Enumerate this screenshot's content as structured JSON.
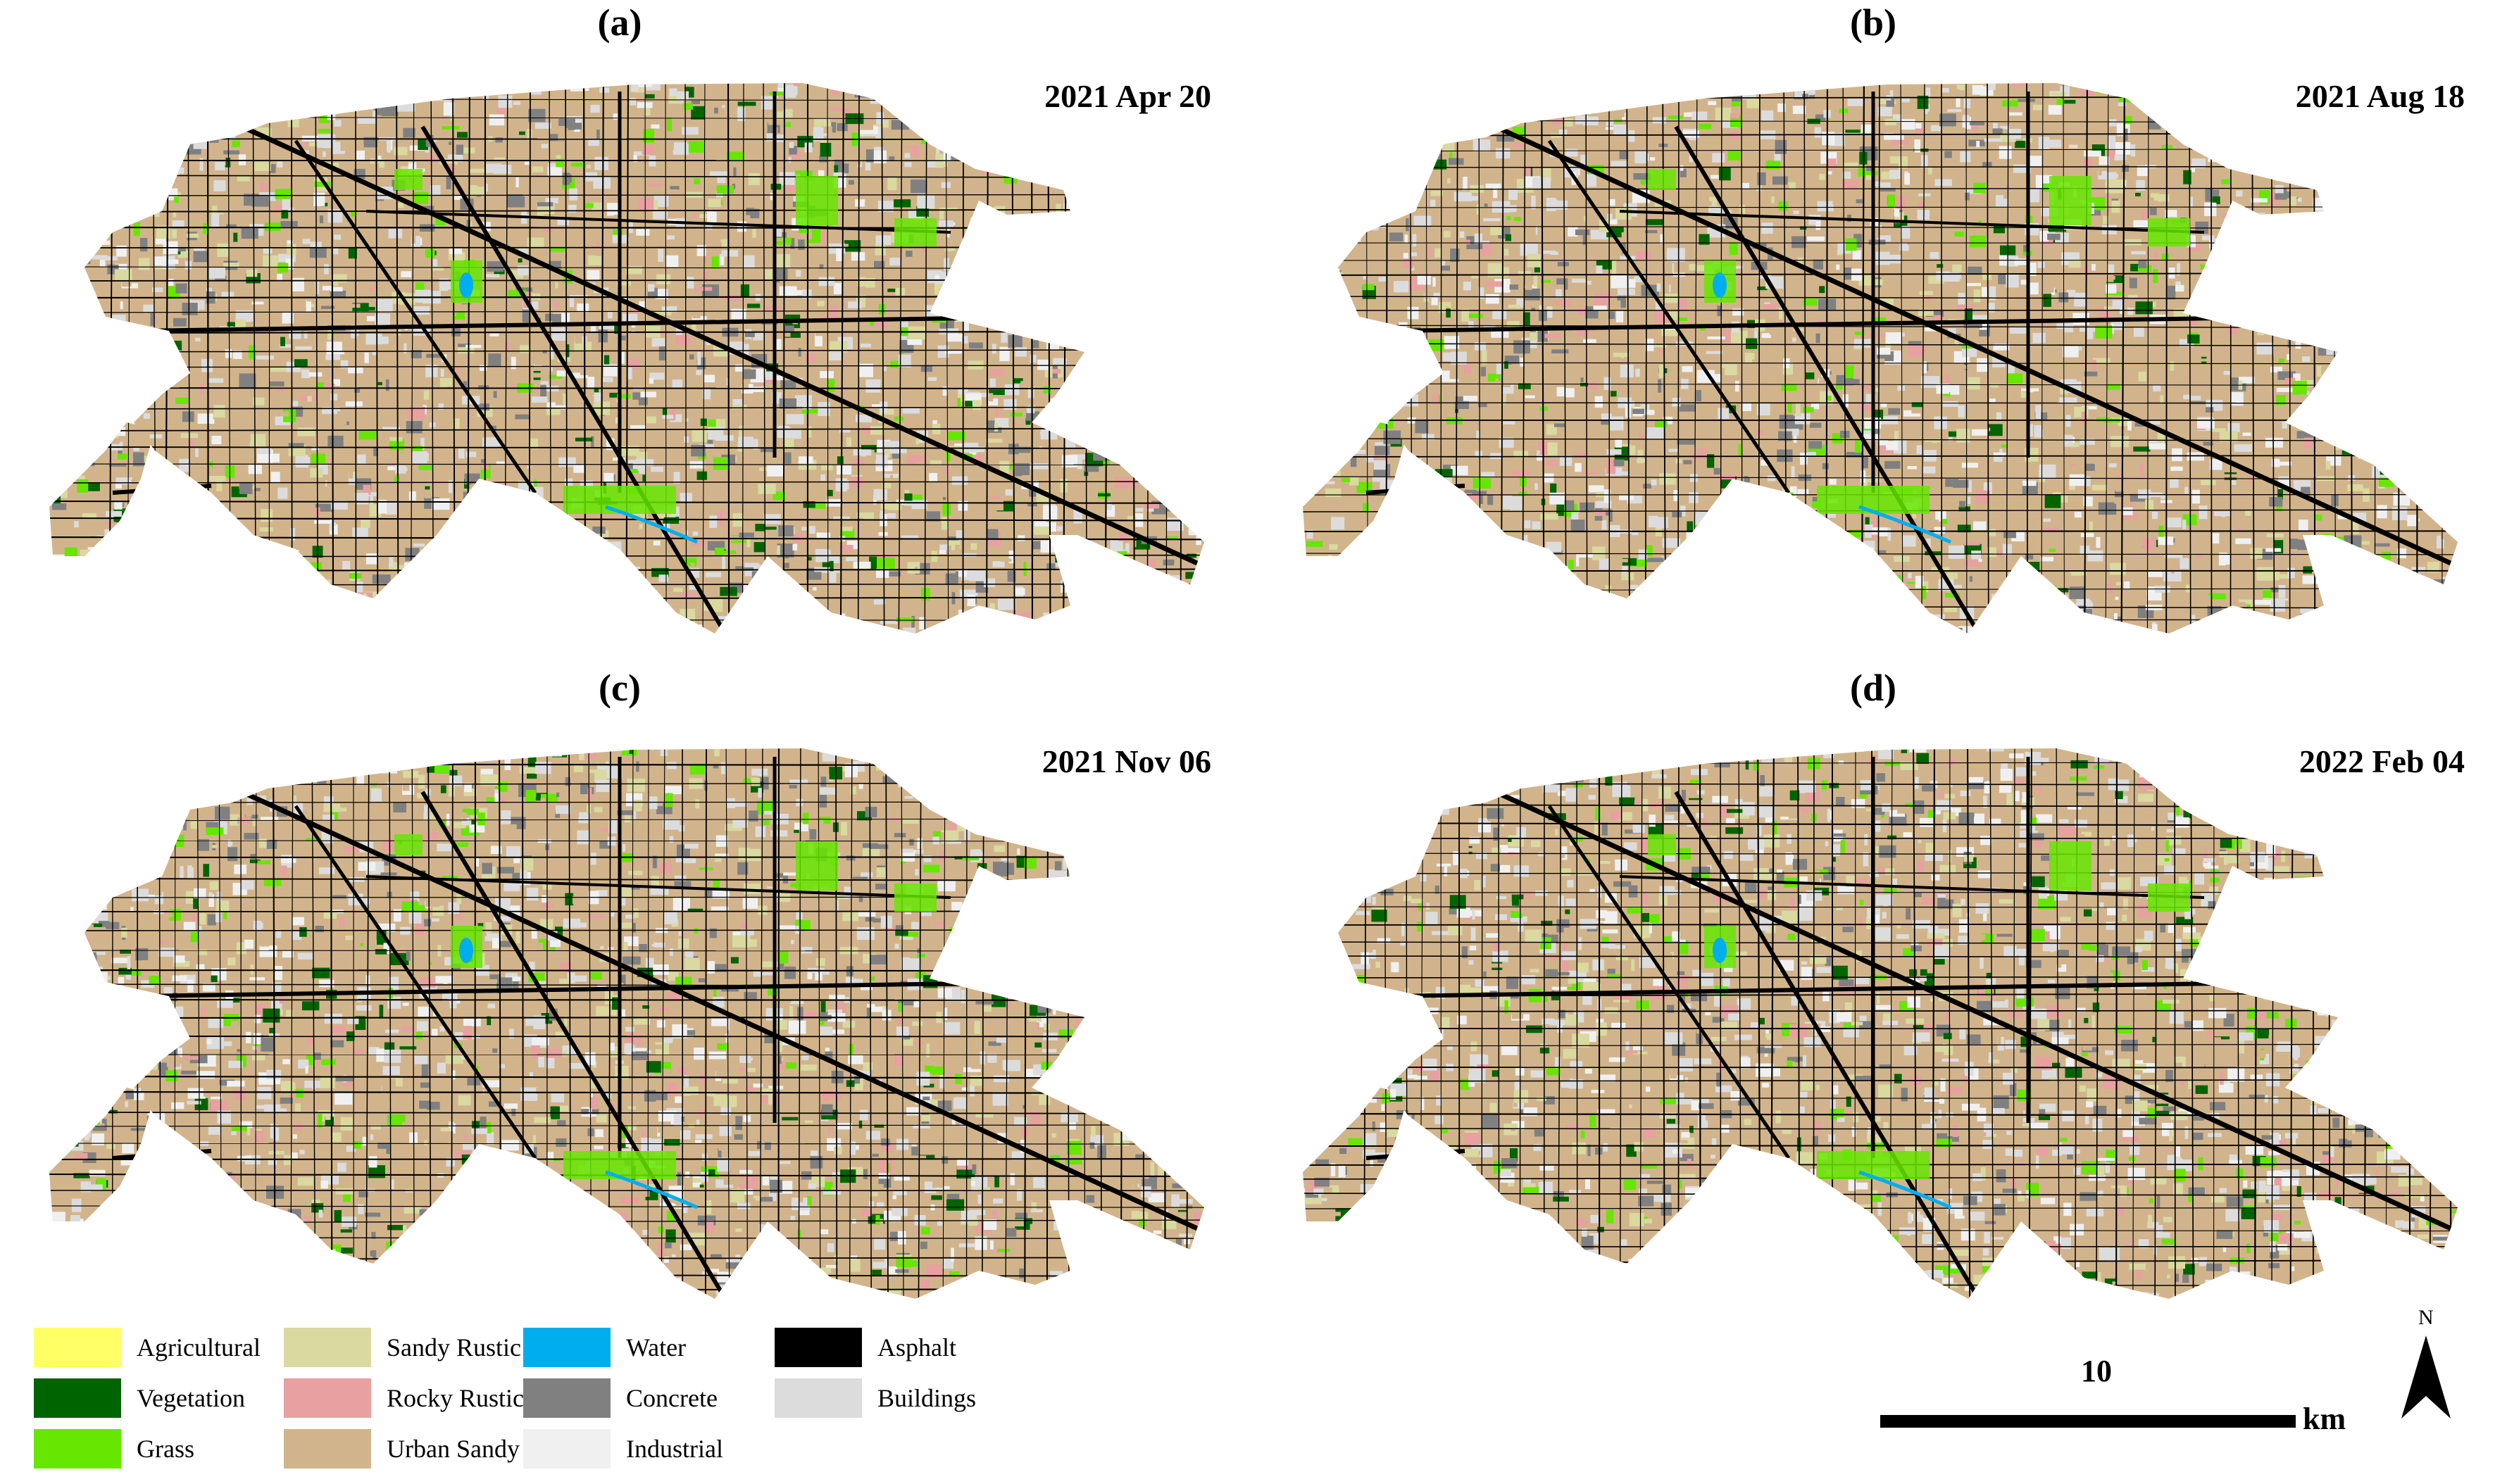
{
  "panels": [
    {
      "letter": "(a)",
      "date": "2021 Apr 20"
    },
    {
      "letter": "(b)",
      "date": "2021 Aug 18"
    },
    {
      "letter": "(c)",
      "date": "2021 Nov 06"
    },
    {
      "letter": "(d)",
      "date": "2022 Feb 04"
    }
  ],
  "legend": {
    "items": [
      {
        "label": "Agricultural",
        "color": "#ffff66"
      },
      {
        "label": "Vegetation",
        "color": "#006400"
      },
      {
        "label": "Grass",
        "color": "#66e600"
      },
      {
        "label": "Sandy Rustic",
        "color": "#d9d9a0"
      },
      {
        "label": "Rocky Rustic",
        "color": "#e8a0a0"
      },
      {
        "label": "Urban Sandy",
        "color": "#d2b48c"
      },
      {
        "label": "Water",
        "color": "#00aeef"
      },
      {
        "label": "Concrete",
        "color": "#808080"
      },
      {
        "label": "Industrial",
        "color": "#f0f0f0"
      },
      {
        "label": "Asphalt",
        "color": "#000000"
      },
      {
        "label": "Buildings",
        "color": "#dcdcdc"
      }
    ]
  },
  "scale_bar": {
    "value": "10",
    "unit": "km"
  },
  "north_arrow": {
    "label": "N"
  }
}
